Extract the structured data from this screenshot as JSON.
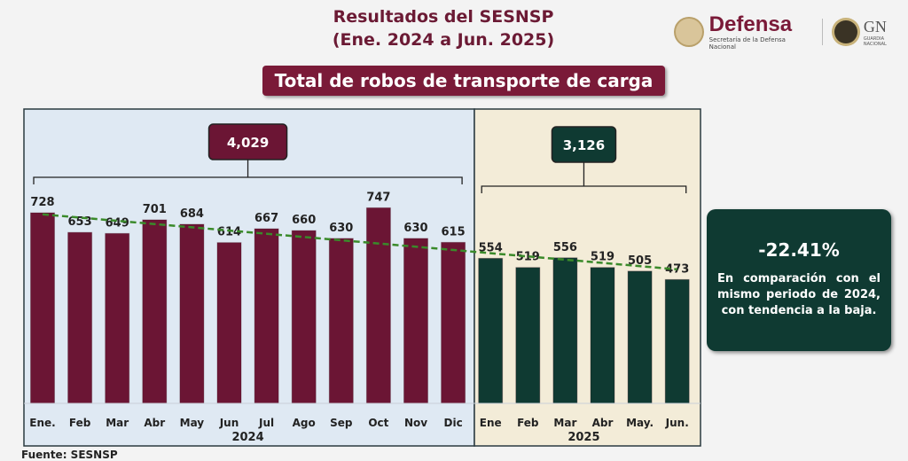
{
  "header": {
    "title": "Resultados del SESNSP",
    "subtitle": "(Ene. 2024 a Jun. 2025)",
    "banner": "Total de robos de transporte de carga"
  },
  "logos": {
    "defensa": "Defensa",
    "defensa_sub": "Secretaría de la Defensa Nacional",
    "gn": "GN",
    "gn_sub": "GUARDIA NACIONAL"
  },
  "callout": {
    "percent": "-22.41%",
    "text": "En comparación con el mismo periodo de 2024, con tendencia a la baja."
  },
  "source": "Fuente: SESNSP",
  "colors": {
    "bar2024": "#6b1534",
    "bar2025": "#0f3a32",
    "bg2024": "#dfe9f3",
    "bg2025": "#f3ecd8",
    "trend": "#3a8a2a"
  },
  "chart_data": {
    "type": "bar",
    "title": "Total de robos de transporte de carga",
    "groups": [
      {
        "year": "2024",
        "total": "4,029",
        "categories": [
          "Ene.",
          "Feb",
          "Mar",
          "Abr",
          "May",
          "Jun",
          "Jul",
          "Ago",
          "Sep",
          "Oct",
          "Nov",
          "Dic"
        ],
        "values": [
          728,
          653,
          649,
          701,
          684,
          614,
          667,
          660,
          630,
          747,
          630,
          615
        ]
      },
      {
        "year": "2025",
        "total": "3,126",
        "categories": [
          "Ene",
          "Feb",
          "Mar",
          "Abr",
          "May.",
          "Jun."
        ],
        "values": [
          554,
          519,
          556,
          519,
          505,
          473
        ]
      }
    ],
    "trendline": "linear, decreasing",
    "ylim": [
      0,
      800
    ]
  }
}
